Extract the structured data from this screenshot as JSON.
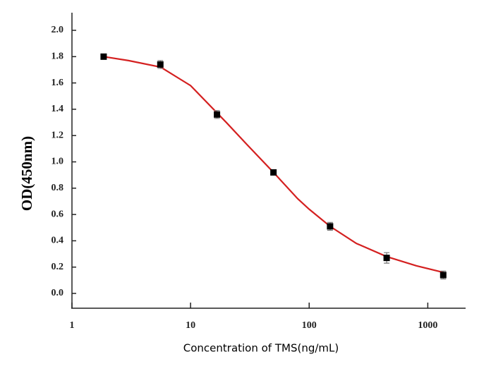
{
  "chart_data": {
    "type": "scatter",
    "x_label": "Concentration of TMS(ng/mL)",
    "y_label": "OD(450nm)",
    "x": [
      1.85,
      5.56,
      16.7,
      50,
      150,
      450,
      1350
    ],
    "values": [
      1.8,
      1.74,
      1.36,
      0.92,
      0.51,
      0.27,
      0.14
    ],
    "errors": [
      0.02,
      0.03,
      0.03,
      0.02,
      0.03,
      0.04,
      0.03
    ],
    "color": "#000000",
    "fit": {
      "type": "line",
      "color": "#d42020",
      "x": [
        1.85,
        3,
        5.6,
        10,
        20,
        30,
        50,
        80,
        100,
        150,
        250,
        450,
        800,
        1350
      ],
      "values": [
        1.8,
        1.77,
        1.72,
        1.58,
        1.3,
        1.13,
        0.92,
        0.72,
        0.64,
        0.51,
        0.38,
        0.28,
        0.21,
        0.16
      ]
    },
    "log_x": true,
    "xlim": [
      1,
      2000
    ],
    "xticks": [
      1,
      10,
      100,
      1000
    ],
    "ylim": [
      -0.1,
      2.1
    ],
    "yticks": [
      {
        "value": 0,
        "label": "0.0"
      },
      {
        "value": 0.2,
        "label": "0.2"
      },
      {
        "value": 0.4,
        "label": "0.4"
      },
      {
        "value": 0.6,
        "label": "0.6"
      },
      {
        "value": 0.8,
        "label": "0.8"
      },
      {
        "value": 1.0,
        "label": "1.0"
      },
      {
        "value": 1.2,
        "label": "1.2"
      },
      {
        "value": 1.4,
        "label": "1.4"
      },
      {
        "value": 1.6,
        "label": "1.6"
      },
      {
        "value": 1.8,
        "label": "1.8"
      },
      {
        "value": 2.0,
        "label": "2.0"
      }
    ]
  }
}
